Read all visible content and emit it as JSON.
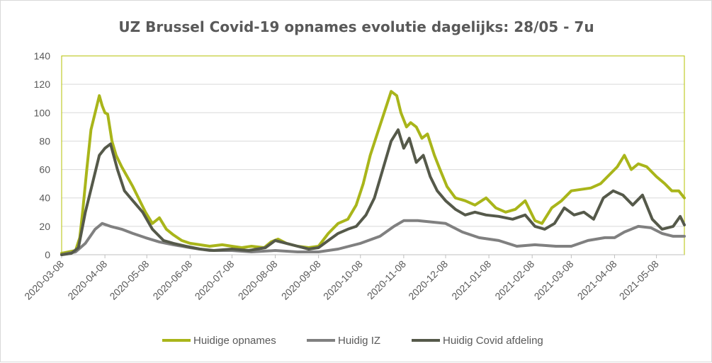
{
  "chart_data": {
    "type": "line",
    "title": "UZ Brussel Covid-19 opnames evolutie dagelijks: 28/05 - 7u",
    "xlabel": "",
    "ylabel": "",
    "ylim": [
      0,
      140
    ],
    "yticks": [
      "0",
      "20",
      "40",
      "60",
      "80",
      "100",
      "120",
      "140"
    ],
    "x_tick_labels": [
      "2020-03-08",
      "2020-04-08",
      "2020-05-08",
      "2020-06-08",
      "2020-07-08",
      "2020-08-08",
      "2020-09-08",
      "2020-10-08",
      "2020-11-08",
      "2020-12-08",
      "2021-01-08",
      "2021-02-08",
      "2021-03-08",
      "2021-04-08",
      "2021-05-08"
    ],
    "xlim": [
      "2020-03-08",
      "2021-05-28"
    ],
    "grid": "horizontal",
    "legend_position": "bottom",
    "series": [
      {
        "name": "Huidige opnames",
        "color": "#a9b51a",
        "x": [
          "2020-03-08",
          "2020-03-13",
          "2020-03-18",
          "2020-03-21",
          "2020-03-23",
          "2020-03-26",
          "2020-03-29",
          "2020-04-01",
          "2020-04-04",
          "2020-04-06",
          "2020-04-08",
          "2020-04-10",
          "2020-04-13",
          "2020-04-16",
          "2020-04-20",
          "2020-04-24",
          "2020-04-28",
          "2020-05-02",
          "2020-05-07",
          "2020-05-12",
          "2020-05-17",
          "2020-05-22",
          "2020-05-27",
          "2020-06-02",
          "2020-06-08",
          "2020-06-15",
          "2020-06-22",
          "2020-07-01",
          "2020-07-08",
          "2020-07-15",
          "2020-07-22",
          "2020-07-31",
          "2020-08-05",
          "2020-08-10",
          "2020-08-16",
          "2020-08-24",
          "2020-09-01",
          "2020-09-08",
          "2020-09-15",
          "2020-09-22",
          "2020-09-29",
          "2020-10-05",
          "2020-10-10",
          "2020-10-15",
          "2020-10-20",
          "2020-10-25",
          "2020-10-30",
          "2020-11-03",
          "2020-11-06",
          "2020-11-10",
          "2020-11-13",
          "2020-11-17",
          "2020-11-21",
          "2020-11-25",
          "2020-11-30",
          "2020-12-04",
          "2020-12-09",
          "2020-12-15",
          "2020-12-22",
          "2020-12-29",
          "2021-01-06",
          "2021-01-13",
          "2021-01-20",
          "2021-01-27",
          "2021-02-03",
          "2021-02-10",
          "2021-02-15",
          "2021-02-22",
          "2021-03-01",
          "2021-03-08",
          "2021-03-15",
          "2021-03-22",
          "2021-03-29",
          "2021-04-05",
          "2021-04-10",
          "2021-04-15",
          "2021-04-20",
          "2021-04-25",
          "2021-05-01",
          "2021-05-08",
          "2021-05-14",
          "2021-05-19",
          "2021-05-24",
          "2021-05-28"
        ],
        "values": [
          1,
          2,
          3,
          12,
          30,
          60,
          88,
          100,
          112,
          105,
          100,
          99,
          80,
          70,
          62,
          55,
          48,
          40,
          30,
          22,
          26,
          18,
          14,
          10,
          8,
          7,
          6,
          7,
          6,
          5,
          6,
          5,
          9,
          11,
          8,
          6,
          5,
          6,
          15,
          22,
          25,
          35,
          50,
          70,
          85,
          100,
          115,
          112,
          100,
          90,
          93,
          90,
          82,
          85,
          70,
          60,
          48,
          40,
          38,
          35,
          40,
          33,
          30,
          32,
          38,
          24,
          22,
          33,
          38,
          45,
          46,
          47,
          50,
          57,
          62,
          70,
          60,
          64,
          62,
          55,
          50,
          45,
          45,
          40
        ]
      },
      {
        "name": "Huidig IZ",
        "color": "#808080",
        "x": [
          "2020-03-08",
          "2020-03-18",
          "2020-03-25",
          "2020-04-01",
          "2020-04-06",
          "2020-04-12",
          "2020-04-20",
          "2020-04-28",
          "2020-05-07",
          "2020-05-17",
          "2020-05-27",
          "2020-06-08",
          "2020-06-22",
          "2020-07-08",
          "2020-07-22",
          "2020-08-08",
          "2020-08-24",
          "2020-09-08",
          "2020-09-22",
          "2020-10-08",
          "2020-10-22",
          "2020-11-01",
          "2020-11-08",
          "2020-11-18",
          "2020-11-28",
          "2020-12-08",
          "2020-12-20",
          "2021-01-01",
          "2021-01-15",
          "2021-01-28",
          "2021-02-10",
          "2021-02-25",
          "2021-03-08",
          "2021-03-20",
          "2021-04-01",
          "2021-04-08",
          "2021-04-15",
          "2021-04-25",
          "2021-05-04",
          "2021-05-12",
          "2021-05-20",
          "2021-05-28"
        ],
        "values": [
          0,
          2,
          8,
          18,
          22,
          20,
          18,
          15,
          12,
          9,
          7,
          5,
          3,
          3,
          2,
          3,
          2,
          2,
          4,
          8,
          13,
          20,
          24,
          24,
          23,
          22,
          16,
          12,
          10,
          6,
          7,
          6,
          6,
          10,
          12,
          12,
          16,
          20,
          19,
          15,
          13,
          13
        ]
      },
      {
        "name": "Huidig Covid afdeling",
        "color": "#55594a",
        "x": [
          "2020-03-08",
          "2020-03-15",
          "2020-03-20",
          "2020-03-25",
          "2020-03-30",
          "2020-04-04",
          "2020-04-08",
          "2020-04-12",
          "2020-04-17",
          "2020-04-22",
          "2020-04-28",
          "2020-05-05",
          "2020-05-12",
          "2020-05-20",
          "2020-05-27",
          "2020-06-05",
          "2020-06-15",
          "2020-06-25",
          "2020-07-08",
          "2020-07-20",
          "2020-08-01",
          "2020-08-08",
          "2020-08-16",
          "2020-08-24",
          "2020-09-01",
          "2020-09-08",
          "2020-09-15",
          "2020-09-22",
          "2020-09-29",
          "2020-10-05",
          "2020-10-12",
          "2020-10-18",
          "2020-10-24",
          "2020-10-30",
          "2020-11-04",
          "2020-11-08",
          "2020-11-12",
          "2020-11-17",
          "2020-11-22",
          "2020-11-27",
          "2020-12-02",
          "2020-12-08",
          "2020-12-15",
          "2020-12-22",
          "2020-12-29",
          "2021-01-06",
          "2021-01-15",
          "2021-01-25",
          "2021-02-03",
          "2021-02-10",
          "2021-02-17",
          "2021-02-24",
          "2021-03-03",
          "2021-03-10",
          "2021-03-17",
          "2021-03-24",
          "2021-03-31",
          "2021-04-07",
          "2021-04-14",
          "2021-04-21",
          "2021-04-28",
          "2021-05-05",
          "2021-05-12",
          "2021-05-20",
          "2021-05-25",
          "2021-05-28"
        ],
        "values": [
          0,
          1,
          5,
          30,
          50,
          70,
          75,
          78,
          60,
          45,
          38,
          30,
          18,
          10,
          8,
          6,
          4,
          3,
          4,
          3,
          5,
          10,
          8,
          6,
          4,
          5,
          10,
          15,
          18,
          20,
          28,
          40,
          60,
          80,
          88,
          75,
          82,
          65,
          70,
          55,
          45,
          38,
          32,
          28,
          30,
          28,
          27,
          25,
          28,
          20,
          18,
          22,
          33,
          28,
          30,
          25,
          40,
          45,
          42,
          35,
          42,
          25,
          18,
          20,
          27,
          21
        ]
      }
    ]
  }
}
